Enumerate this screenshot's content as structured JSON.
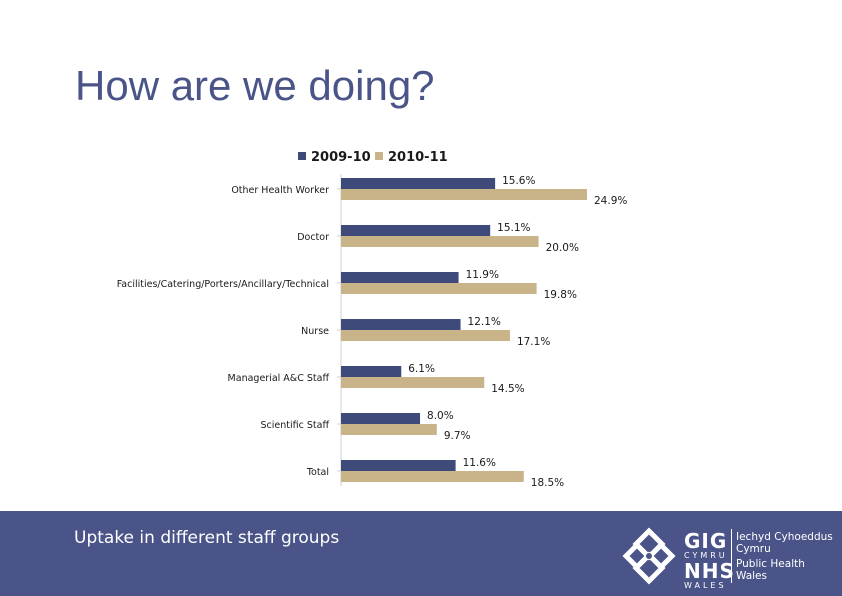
{
  "slide": {
    "title": "How are we doing?",
    "caption": "Uptake in different staff groups"
  },
  "logo": {
    "gig": "GIG",
    "cymru": "CYMRU",
    "nhs": "NHS",
    "wales": "WALES",
    "org_welsh_1": "Iechyd Cyhoeddus",
    "org_welsh_2": "Cymru",
    "org_english_1": "Public Health",
    "org_english_2": "Wales"
  },
  "colors": {
    "series_2009": "#3d4a7a",
    "series_2010": "#c9b48a",
    "footer": "#4a5488",
    "title": "#4a5488"
  },
  "chart_data": {
    "type": "bar",
    "orientation": "horizontal",
    "categories": [
      "Other Health Worker",
      "Doctor",
      "Facilities/Catering/Porters/Ancillary/Technical",
      "Nurse",
      "Managerial A&C Staff",
      "Scientific Staff",
      "Total"
    ],
    "series": [
      {
        "name": "2009-10",
        "values": [
          15.6,
          15.1,
          11.9,
          12.1,
          6.1,
          8.0,
          11.6
        ],
        "labels": [
          "15.6%",
          "15.1%",
          "11.9%",
          "12.1%",
          "6.1%",
          "8.0%",
          "11.6%"
        ]
      },
      {
        "name": "2010-11",
        "values": [
          24.9,
          20.0,
          19.8,
          17.1,
          14.5,
          9.7,
          18.5
        ],
        "labels": [
          "24.9%",
          "20.0%",
          "19.8%",
          "17.1%",
          "14.5%",
          "9.7%",
          "18.5%"
        ]
      }
    ],
    "legend_position": "top",
    "grid": false
  }
}
